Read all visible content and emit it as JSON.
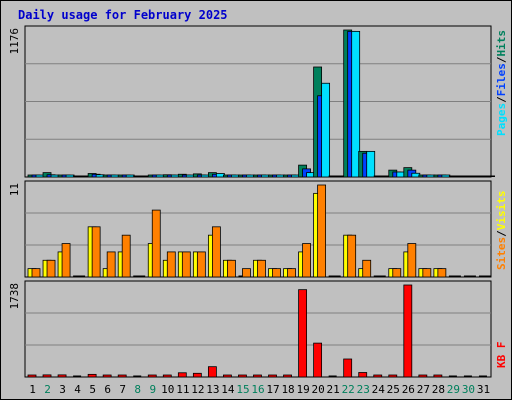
{
  "title": "Daily usage for February 2025",
  "colors": {
    "hits": "#00805c",
    "files": "#0040ff",
    "pages": "#00e0ff",
    "visits": "#ffff00",
    "sites": "#ff8000",
    "kbytes": "#ff0000",
    "weekend": "#00805c",
    "weekday": "#000000",
    "panel": "#c0c0c0",
    "grid": "#808080"
  },
  "chart_data": [
    {
      "type": "bar",
      "panel": "hits-files-pages",
      "ymax_label": "1176",
      "ylim": [
        0,
        1176
      ],
      "legend": [
        {
          "name": "Pages",
          "color": "#00e0ff"
        },
        {
          "name": "Files",
          "color": "#0040ff"
        },
        {
          "name": "Hits",
          "color": "#00805c"
        }
      ],
      "legend_placement": "right-vertical",
      "categories": [
        "1",
        "2",
        "3",
        "4",
        "5",
        "6",
        "7",
        "8",
        "9",
        "10",
        "11",
        "12",
        "13",
        "14",
        "15",
        "16",
        "17",
        "18",
        "19",
        "20",
        "21",
        "22",
        "23",
        "24",
        "25",
        "26",
        "27",
        "28",
        "29",
        "30",
        "31"
      ],
      "series": [
        {
          "name": "Hits",
          "values": [
            12,
            35,
            12,
            0,
            28,
            12,
            12,
            0,
            12,
            18,
            22,
            25,
            35,
            12,
            12,
            12,
            12,
            12,
            95,
            880,
            0,
            1176,
            205,
            0,
            55,
            75,
            12,
            12,
            0,
            0,
            0
          ]
        },
        {
          "name": "Files",
          "values": [
            6,
            18,
            6,
            0,
            22,
            6,
            6,
            0,
            6,
            10,
            14,
            16,
            22,
            6,
            6,
            6,
            6,
            6,
            65,
            650,
            0,
            1165,
            190,
            0,
            40,
            55,
            6,
            6,
            0,
            0,
            0
          ]
        },
        {
          "name": "Pages",
          "values": [
            3,
            12,
            3,
            0,
            18,
            3,
            3,
            0,
            3,
            6,
            8,
            10,
            28,
            3,
            3,
            3,
            3,
            3,
            35,
            750,
            0,
            1165,
            205,
            0,
            40,
            30,
            3,
            3,
            0,
            0,
            0
          ]
        }
      ]
    },
    {
      "type": "bar",
      "panel": "visits-sites",
      "ymax_label": "11",
      "ylim": [
        0,
        11
      ],
      "legend": [
        {
          "name": "Sites",
          "color": "#ff8000"
        },
        {
          "name": "Visits",
          "color": "#ffff00"
        }
      ],
      "legend_placement": "right-vertical",
      "categories": [
        "1",
        "2",
        "3",
        "4",
        "5",
        "6",
        "7",
        "8",
        "9",
        "10",
        "11",
        "12",
        "13",
        "14",
        "15",
        "16",
        "17",
        "18",
        "19",
        "20",
        "21",
        "22",
        "23",
        "24",
        "25",
        "26",
        "27",
        "28",
        "29",
        "30",
        "31"
      ],
      "series": [
        {
          "name": "Visits",
          "values": [
            1,
            2,
            3,
            0,
            6,
            1,
            3,
            0,
            4,
            2,
            3,
            3,
            5,
            2,
            0,
            2,
            1,
            1,
            3,
            10,
            0,
            5,
            1,
            0,
            1,
            3,
            1,
            1,
            0,
            0,
            0
          ]
        },
        {
          "name": "Sites",
          "values": [
            1,
            2,
            4,
            0,
            6,
            3,
            5,
            0,
            8,
            3,
            3,
            3,
            6,
            2,
            1,
            2,
            1,
            1,
            4,
            11,
            0,
            5,
            2,
            0,
            1,
            4,
            1,
            1,
            0,
            0,
            0
          ]
        }
      ]
    },
    {
      "type": "bar",
      "panel": "kbytes",
      "ymax_label": "1738",
      "ylim": [
        0,
        1738
      ],
      "legend": [
        {
          "name": "KB F",
          "color": "#ff0000"
        }
      ],
      "legend_placement": "right-vertical",
      "categories": [
        "1",
        "2",
        "3",
        "4",
        "5",
        "6",
        "7",
        "8",
        "9",
        "10",
        "11",
        "12",
        "13",
        "14",
        "15",
        "16",
        "17",
        "18",
        "19",
        "20",
        "21",
        "22",
        "23",
        "24",
        "25",
        "26",
        "27",
        "28",
        "29",
        "30",
        "31"
      ],
      "series": [
        {
          "name": "KB F",
          "values": [
            25,
            40,
            40,
            0,
            50,
            25,
            30,
            0,
            35,
            35,
            80,
            70,
            195,
            25,
            25,
            25,
            25,
            25,
            1650,
            640,
            0,
            340,
            85,
            20,
            25,
            1738,
            25,
            25,
            0,
            0,
            0
          ]
        }
      ]
    }
  ],
  "x_labels": [
    {
      "text": "1",
      "weekend": false
    },
    {
      "text": "2",
      "weekend": true
    },
    {
      "text": "3",
      "weekend": false
    },
    {
      "text": "4",
      "weekend": false
    },
    {
      "text": "5",
      "weekend": false
    },
    {
      "text": "6",
      "weekend": false
    },
    {
      "text": "7",
      "weekend": false
    },
    {
      "text": "8",
      "weekend": true
    },
    {
      "text": "9",
      "weekend": true
    },
    {
      "text": "10",
      "weekend": false
    },
    {
      "text": "11",
      "weekend": false
    },
    {
      "text": "12",
      "weekend": false
    },
    {
      "text": "13",
      "weekend": false
    },
    {
      "text": "14",
      "weekend": false
    },
    {
      "text": "15",
      "weekend": true
    },
    {
      "text": "16",
      "weekend": true
    },
    {
      "text": "17",
      "weekend": false
    },
    {
      "text": "18",
      "weekend": false
    },
    {
      "text": "19",
      "weekend": false
    },
    {
      "text": "20",
      "weekend": false
    },
    {
      "text": "21",
      "weekend": false
    },
    {
      "text": "22",
      "weekend": true
    },
    {
      "text": "23",
      "weekend": true
    },
    {
      "text": "24",
      "weekend": false
    },
    {
      "text": "25",
      "weekend": false
    },
    {
      "text": "26",
      "weekend": false
    },
    {
      "text": "27",
      "weekend": false
    },
    {
      "text": "28",
      "weekend": false
    },
    {
      "text": "29",
      "weekend": true
    },
    {
      "text": "30",
      "weekend": true
    },
    {
      "text": "31",
      "weekend": false
    }
  ]
}
